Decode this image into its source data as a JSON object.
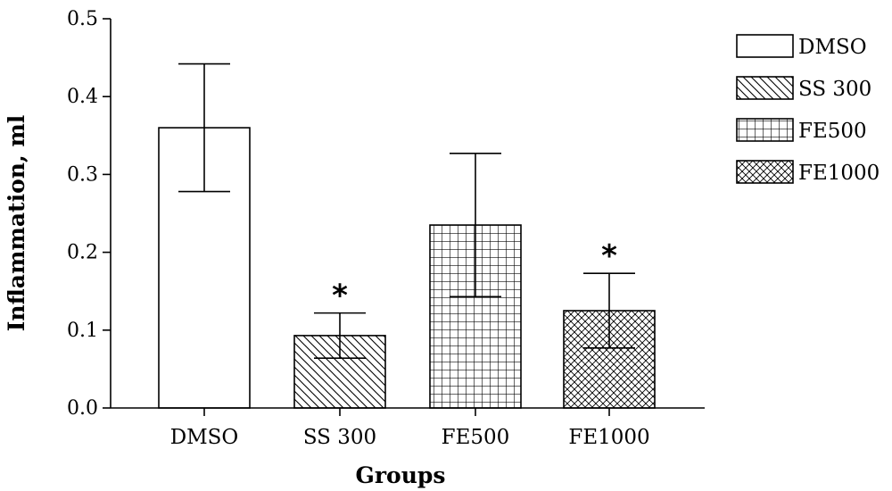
{
  "chart_data": {
    "type": "bar",
    "title": "",
    "xlabel": "Groups",
    "ylabel": "Inflammation, ml",
    "ylim": [
      0,
      0.5
    ],
    "yticks": [
      "0.0",
      "0.1",
      "0.2",
      "0.3",
      "0.4",
      "0.5"
    ],
    "grid": false,
    "legend_position": "top-right",
    "categories": [
      "DMSO",
      "SS 300",
      "FE500",
      "FE1000"
    ],
    "series": [
      {
        "values": [
          0.36,
          0.093,
          0.235,
          0.125
        ],
        "errors": [
          0.082,
          0.029,
          0.092,
          0.048
        ],
        "significance": [
          "",
          "*",
          "",
          "*"
        ]
      }
    ],
    "legend": [
      {
        "label": "DMSO",
        "pattern": "none"
      },
      {
        "label": "SS 300",
        "pattern": "diagonal"
      },
      {
        "label": "FE500",
        "pattern": "grid"
      },
      {
        "label": "FE1000",
        "pattern": "crosshatch"
      }
    ],
    "colors": {
      "stroke": "#000000",
      "fill": "#ffffff"
    }
  }
}
